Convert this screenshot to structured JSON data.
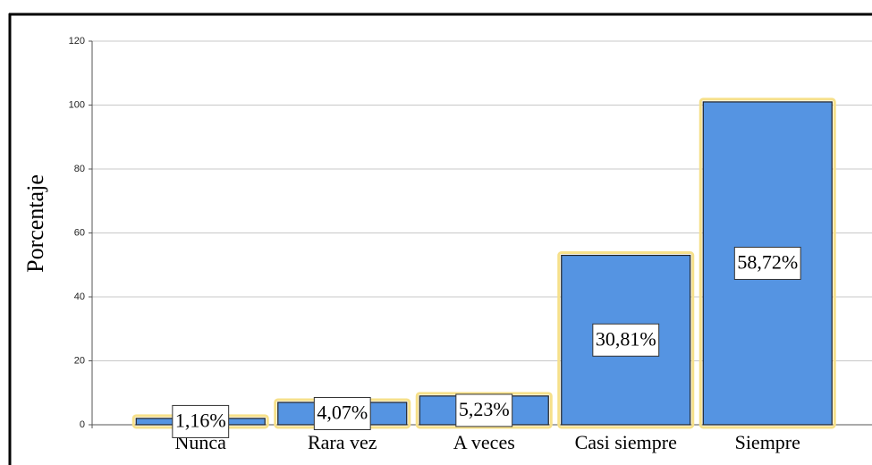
{
  "chart_data": {
    "type": "bar",
    "categories": [
      "Nunca",
      "Rara vez",
      "A veces",
      "Casi siempre",
      "Siempre"
    ],
    "values": [
      2,
      7,
      9,
      53,
      101
    ],
    "data_labels": [
      {
        "value": 1.16,
        "label": "1,16%"
      },
      {
        "value": 4.07,
        "label": "4,07%"
      },
      {
        "value": 5.23,
        "label": "5,23%"
      },
      {
        "value": 30.81,
        "label": "30,81%"
      },
      {
        "value": 58.72,
        "label": "58,72%"
      }
    ],
    "color": "#5594e2",
    "y_label": "Porcentaje",
    "ylim": [
      0,
      120
    ],
    "yticks": [
      0,
      20,
      40,
      60,
      80,
      100,
      120
    ],
    "grid": true
  }
}
